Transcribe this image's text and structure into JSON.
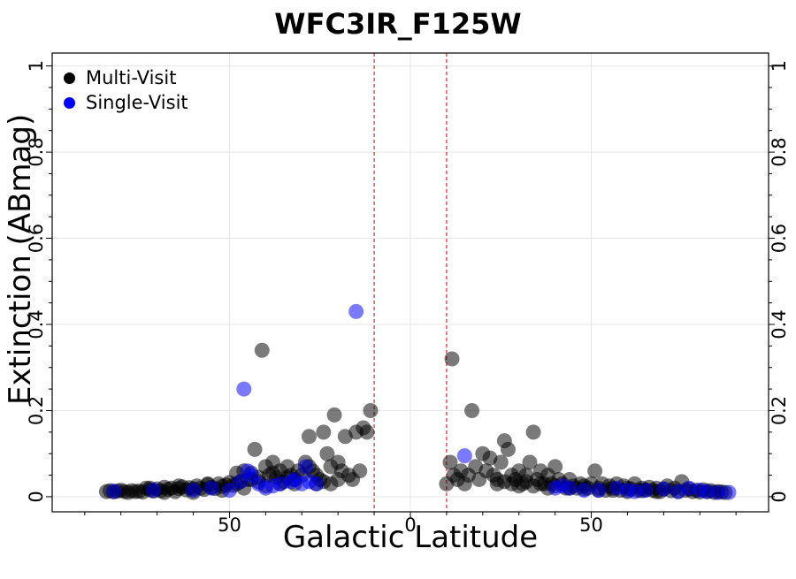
{
  "chart_data": {
    "type": "scatter",
    "title": "WFC3IR_F125W",
    "xlabel": "Galactic Latitude",
    "ylabel": "Extinction (ABmag)",
    "xlim": [
      -99,
      99
    ],
    "ylim": [
      -0.035,
      1.03
    ],
    "x_ticks": [
      -50,
      0,
      50
    ],
    "x_tick_labels": [
      "50",
      "0",
      "50"
    ],
    "y_ticks": [
      0,
      0.2,
      0.4,
      0.6,
      0.8,
      1.0
    ],
    "y_tick_labels": [
      "0",
      "0.2",
      "0.4",
      "0.6",
      "0.8",
      "1"
    ],
    "grid": true,
    "legend_position": "top-left",
    "vlines": [
      -10,
      10
    ],
    "colors": {
      "multi": "#000000",
      "single": "#0000ff",
      "vline": "#cc0000",
      "grid": "#e6e6e6"
    },
    "series": [
      {
        "name": "Multi-Visit",
        "points": [
          [
            -84,
            0.012
          ],
          [
            -83,
            0.014
          ],
          [
            -82,
            0.011
          ],
          [
            -81,
            0.013
          ],
          [
            -80,
            0.015
          ],
          [
            -79,
            0.012
          ],
          [
            -78,
            0.01
          ],
          [
            -77,
            0.014
          ],
          [
            -76,
            0.012
          ],
          [
            -75,
            0.013
          ],
          [
            -74,
            0.011
          ],
          [
            -73,
            0.02
          ],
          [
            -72,
            0.016
          ],
          [
            -71,
            0.013
          ],
          [
            -70,
            0.018
          ],
          [
            -69,
            0.014
          ],
          [
            -68,
            0.022
          ],
          [
            -67,
            0.017
          ],
          [
            -66,
            0.02
          ],
          [
            -65,
            0.012
          ],
          [
            -64,
            0.019
          ],
          [
            -63,
            0.023
          ],
          [
            -62,
            0.016
          ],
          [
            -61,
            0.021
          ],
          [
            -60,
            0.018
          ],
          [
            -59,
            0.025
          ],
          [
            -58,
            0.02
          ],
          [
            -57,
            0.017
          ],
          [
            -56,
            0.028
          ],
          [
            -55,
            0.022
          ],
          [
            -54,
            0.019
          ],
          [
            -53,
            0.03
          ],
          [
            -52,
            0.024
          ],
          [
            -51,
            0.027
          ],
          [
            -50,
            0.033
          ],
          [
            -49,
            0.026
          ],
          [
            -48,
            0.055
          ],
          [
            -47,
            0.035
          ],
          [
            -46,
            0.06
          ],
          [
            -45,
            0.04
          ],
          [
            -44,
            0.055
          ],
          [
            -43,
            0.11
          ],
          [
            -42,
            0.045
          ],
          [
            -41,
            0.34
          ],
          [
            -40,
            0.07
          ],
          [
            -39,
            0.05
          ],
          [
            -38,
            0.08
          ],
          [
            -37,
            0.045
          ],
          [
            -36,
            0.06
          ],
          [
            -35,
            0.035
          ],
          [
            -34,
            0.07
          ],
          [
            -33,
            0.05
          ],
          [
            -32,
            0.04
          ],
          [
            -31,
            0.06
          ],
          [
            -30,
            0.05
          ],
          [
            -29,
            0.08
          ],
          [
            -28,
            0.14
          ],
          [
            -27,
            0.06
          ],
          [
            -26,
            0.05
          ],
          [
            -25,
            0.04
          ],
          [
            -24,
            0.15
          ],
          [
            -23,
            0.1
          ],
          [
            -22,
            0.07
          ],
          [
            -21,
            0.19
          ],
          [
            -20,
            0.08
          ],
          [
            -19,
            0.06
          ],
          [
            -18,
            0.14
          ],
          [
            -17,
            0.05
          ],
          [
            -16,
            0.04
          ],
          [
            -15,
            0.15
          ],
          [
            -14,
            0.06
          ],
          [
            -13,
            0.16
          ],
          [
            -12,
            0.15
          ],
          [
            -11,
            0.2
          ],
          [
            -56,
            0.03
          ],
          [
            -52,
            0.015
          ],
          [
            -48,
            0.03
          ],
          [
            -44,
            0.04
          ],
          [
            -40,
            0.025
          ],
          [
            -36,
            0.03
          ],
          [
            -32,
            0.03
          ],
          [
            -28,
            0.07
          ],
          [
            -24,
            0.035
          ],
          [
            -20,
            0.04
          ],
          [
            -60,
            0.01
          ],
          [
            -64,
            0.025
          ],
          [
            -68,
            0.01
          ],
          [
            -72,
            0.02
          ],
          [
            -46,
            0.02
          ],
          [
            -42,
            0.035
          ],
          [
            -38,
            0.055
          ],
          [
            -34,
            0.045
          ],
          [
            -26,
            0.03
          ],
          [
            -22,
            0.03
          ],
          [
            10,
            0.03
          ],
          [
            11,
            0.08
          ],
          [
            11.5,
            0.32
          ],
          [
            12,
            0.05
          ],
          [
            13,
            0.04
          ],
          [
            14,
            0.06
          ],
          [
            15,
            0.03
          ],
          [
            16,
            0.05
          ],
          [
            17,
            0.2
          ],
          [
            18,
            0.07
          ],
          [
            19,
            0.04
          ],
          [
            20,
            0.1
          ],
          [
            21,
            0.06
          ],
          [
            22,
            0.09
          ],
          [
            23,
            0.05
          ],
          [
            24,
            0.04
          ],
          [
            25,
            0.08
          ],
          [
            26,
            0.13
          ],
          [
            27,
            0.11
          ],
          [
            28,
            0.05
          ],
          [
            29,
            0.04
          ],
          [
            30,
            0.06
          ],
          [
            31,
            0.03
          ],
          [
            32,
            0.05
          ],
          [
            33,
            0.08
          ],
          [
            34,
            0.15
          ],
          [
            35,
            0.04
          ],
          [
            36,
            0.06
          ],
          [
            37,
            0.03
          ],
          [
            38,
            0.05
          ],
          [
            39,
            0.03
          ],
          [
            40,
            0.07
          ],
          [
            41,
            0.04
          ],
          [
            42,
            0.03
          ],
          [
            43,
            0.02
          ],
          [
            44,
            0.04
          ],
          [
            45,
            0.025
          ],
          [
            46,
            0.02
          ],
          [
            47,
            0.03
          ],
          [
            48,
            0.025
          ],
          [
            49,
            0.02
          ],
          [
            50,
            0.03
          ],
          [
            51,
            0.06
          ],
          [
            52,
            0.02
          ],
          [
            53,
            0.03
          ],
          [
            54,
            0.015
          ],
          [
            55,
            0.025
          ],
          [
            56,
            0.02
          ],
          [
            57,
            0.03
          ],
          [
            58,
            0.015
          ],
          [
            59,
            0.025
          ],
          [
            60,
            0.02
          ],
          [
            61,
            0.018
          ],
          [
            62,
            0.03
          ],
          [
            63,
            0.015
          ],
          [
            64,
            0.02
          ],
          [
            65,
            0.016
          ],
          [
            66,
            0.022
          ],
          [
            67,
            0.015
          ],
          [
            68,
            0.02
          ],
          [
            69,
            0.012
          ],
          [
            70,
            0.018
          ],
          [
            71,
            0.025
          ],
          [
            72,
            0.014
          ],
          [
            73,
            0.02
          ],
          [
            74,
            0.012
          ],
          [
            75,
            0.035
          ],
          [
            76,
            0.015
          ],
          [
            77,
            0.018
          ],
          [
            78,
            0.012
          ],
          [
            79,
            0.015
          ],
          [
            80,
            0.011
          ],
          [
            81,
            0.016
          ],
          [
            82,
            0.012
          ],
          [
            83,
            0.014
          ],
          [
            84,
            0.01
          ],
          [
            85,
            0.012
          ],
          [
            86,
            0.011
          ],
          [
            87,
            0.01
          ],
          [
            24,
            0.03
          ],
          [
            26,
            0.035
          ],
          [
            28,
            0.03
          ],
          [
            30,
            0.025
          ],
          [
            32,
            0.035
          ],
          [
            34,
            0.025
          ],
          [
            36,
            0.03
          ],
          [
            38,
            0.02
          ],
          [
            40,
            0.025
          ],
          [
            44,
            0.02
          ],
          [
            48,
            0.018
          ],
          [
            52,
            0.015
          ],
          [
            56,
            0.015
          ],
          [
            60,
            0.012
          ],
          [
            64,
            0.014
          ],
          [
            68,
            0.012
          ]
        ]
      },
      {
        "name": "Single-Visit",
        "points": [
          [
            -82,
            0.013
          ],
          [
            -71,
            0.015
          ],
          [
            -60,
            0.015
          ],
          [
            -55,
            0.02
          ],
          [
            -50,
            0.015
          ],
          [
            -47,
            0.035
          ],
          [
            -46,
            0.25
          ],
          [
            -45,
            0.06
          ],
          [
            -44,
            0.05
          ],
          [
            -42,
            0.03
          ],
          [
            -40,
            0.02
          ],
          [
            -38,
            0.025
          ],
          [
            -36,
            0.03
          ],
          [
            -33,
            0.035
          ],
          [
            -32,
            0.04
          ],
          [
            -30,
            0.03
          ],
          [
            -29,
            0.07
          ],
          [
            -28,
            0.035
          ],
          [
            -26,
            0.03
          ],
          [
            -15,
            0.43
          ],
          [
            15,
            0.095
          ],
          [
            40,
            0.02
          ],
          [
            42,
            0.025
          ],
          [
            44,
            0.02
          ],
          [
            48,
            0.015
          ],
          [
            52,
            0.015
          ],
          [
            57,
            0.02
          ],
          [
            60,
            0.015
          ],
          [
            62,
            0.012
          ],
          [
            65,
            0.015
          ],
          [
            70,
            0.018
          ],
          [
            74,
            0.012
          ],
          [
            77,
            0.02
          ],
          [
            80,
            0.015
          ],
          [
            82,
            0.012
          ],
          [
            85,
            0.01
          ],
          [
            88,
            0.01
          ]
        ]
      }
    ]
  }
}
